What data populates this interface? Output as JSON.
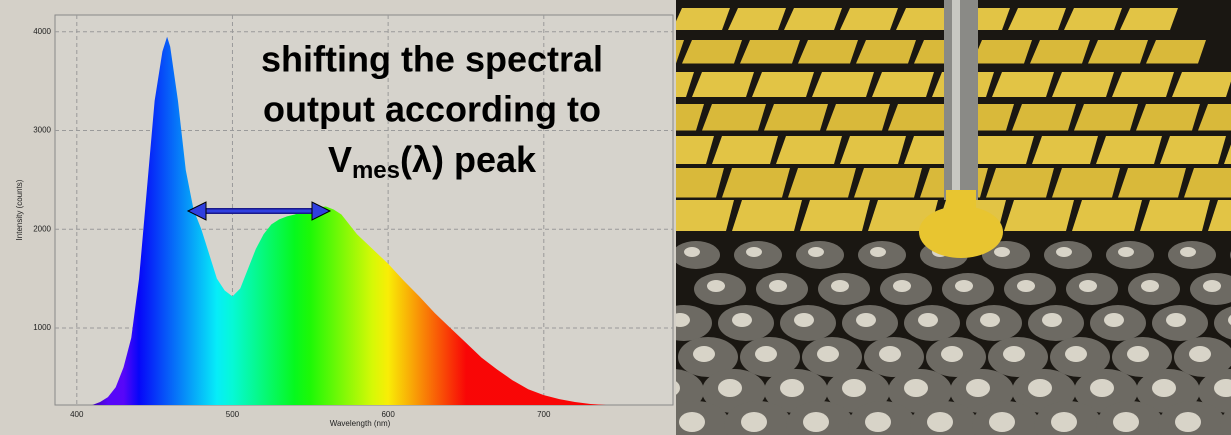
{
  "chart_data": {
    "type": "area",
    "annotation": {
      "lines": [
        "shifting the spectral",
        "output according to"
      ],
      "symbol": "V",
      "subscript": "mes",
      "suffix": "(λ) peak"
    },
    "xlabel": "Wavelength (nm)",
    "ylabel": "Intensity (counts)",
    "x": [
      410,
      415,
      420,
      425,
      430,
      435,
      440,
      445,
      450,
      455,
      458,
      460,
      465,
      470,
      475,
      480,
      485,
      490,
      495,
      500,
      505,
      510,
      515,
      520,
      525,
      530,
      535,
      540,
      545,
      550,
      555,
      560,
      565,
      570,
      575,
      580,
      590,
      600,
      610,
      620,
      630,
      640,
      650,
      660,
      670,
      680,
      690,
      700,
      710,
      720,
      730,
      740
    ],
    "values": [
      220,
      250,
      300,
      400,
      600,
      900,
      1500,
      2400,
      3300,
      3800,
      3950,
      3850,
      3300,
      2600,
      2200,
      2000,
      1750,
      1500,
      1380,
      1320,
      1400,
      1600,
      1800,
      1950,
      2050,
      2100,
      2130,
      2150,
      2180,
      2200,
      2220,
      2230,
      2200,
      2150,
      2050,
      1950,
      1800,
      1650,
      1480,
      1320,
      1150,
      1000,
      850,
      700,
      580,
      470,
      380,
      320,
      280,
      250,
      230,
      220
    ],
    "xlim": [
      386,
      783
    ],
    "ylim": [
      220,
      4170
    ],
    "xticks": [
      400,
      500,
      600,
      700
    ],
    "yticks": [
      1000,
      2000,
      3000,
      4000
    ],
    "grid": true
  }
}
